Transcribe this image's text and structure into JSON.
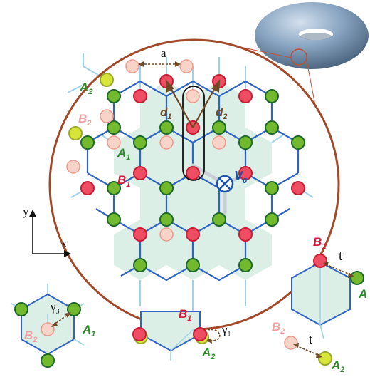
{
  "colors": {
    "red_site": "#ee4d62",
    "red_edge": "#c81e35",
    "green_site": "#73b92e",
    "green_edge": "#1d6a2a",
    "yellow_site": "#d7e43a",
    "yellow_edge": "#9aa82b",
    "faded_red": "#f8d3c8",
    "faded_red_edge": "#ee9a8c",
    "bond": "#2f64c4",
    "faded_bond": "#9fd2ea",
    "hex_fill": "#dcefe6",
    "circle_border": "#a2492a",
    "vector_brown": "#6f4a26",
    "label_green": "#2e8b2e",
    "label_red": "#d21e3c",
    "label_pink": "#f0a0a0",
    "label_blue": "#1a53a8",
    "torus": "#7f9bb8"
  },
  "labels": {
    "lattice_const": "a",
    "A2": {
      "base": "A",
      "sub": "2"
    },
    "B2": {
      "base": "B",
      "sub": "2"
    },
    "A1": {
      "base": "A",
      "sub": "1"
    },
    "B1": {
      "base": "B",
      "sub": "1"
    },
    "d1": {
      "base": "d",
      "sub": "1"
    },
    "d2": {
      "base": "d",
      "sub": "2"
    },
    "V0": {
      "base": "V",
      "sub": "0"
    },
    "axis_x": "x",
    "axis_y": "y",
    "gamma3": {
      "base": "γ",
      "sub": "3"
    },
    "gamma1": {
      "base": "γ",
      "sub": "1"
    },
    "hop_t": "t",
    "A1_trunc": "A"
  },
  "icons": {
    "vortex": "circled-cross-icon",
    "torus": "torus-icon"
  }
}
